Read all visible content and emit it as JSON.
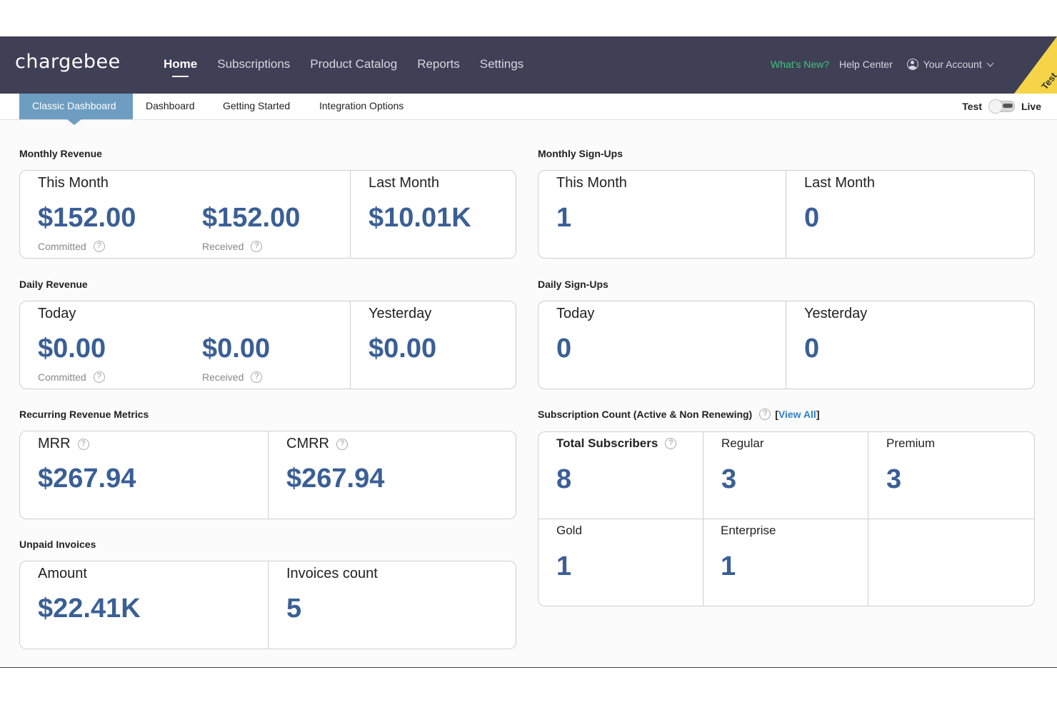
{
  "app": {
    "logo": "chargebee"
  },
  "nav": {
    "items": [
      "Home",
      "Subscriptions",
      "Product Catalog",
      "Reports",
      "Settings"
    ],
    "active": "Home",
    "whats_new": "What's New?",
    "help_center": "Help Center",
    "account": "Your Account",
    "corner_badge": "Test"
  },
  "subnav": {
    "tabs": [
      "Classic Dashboard",
      "Dashboard",
      "Getting Started",
      "Integration Options"
    ],
    "active": "Classic Dashboard",
    "mode_test": "Test",
    "mode_live": "Live"
  },
  "monthly_revenue": {
    "title": "Monthly Revenue",
    "this_month_label": "This Month",
    "committed_value": "$152.00",
    "committed_label": "Committed",
    "received_value": "$152.00",
    "received_label": "Received",
    "last_month_label": "Last Month",
    "last_month_value": "$10.01K"
  },
  "daily_revenue": {
    "title": "Daily Revenue",
    "today_label": "Today",
    "committed_value": "$0.00",
    "committed_label": "Committed",
    "received_value": "$0.00",
    "received_label": "Received",
    "yesterday_label": "Yesterday",
    "yesterday_value": "$0.00"
  },
  "recurring": {
    "title": "Recurring Revenue Metrics",
    "mrr_label": "MRR",
    "mrr_value": "$267.94",
    "cmrr_label": "CMRR",
    "cmrr_value": "$267.94"
  },
  "unpaid": {
    "title": "Unpaid Invoices",
    "amount_label": "Amount",
    "amount_value": "$22.41K",
    "count_label": "Invoices count",
    "count_value": "5"
  },
  "monthly_signups": {
    "title": "Monthly Sign-Ups",
    "this_month_label": "This Month",
    "this_month_value": "1",
    "last_month_label": "Last Month",
    "last_month_value": "0"
  },
  "daily_signups": {
    "title": "Daily Sign-Ups",
    "today_label": "Today",
    "today_value": "0",
    "yesterday_label": "Yesterday",
    "yesterday_value": "0"
  },
  "subscription_count": {
    "title": "Subscription Count (Active & Non Renewing)",
    "view_all_open": "[",
    "view_all": "View All",
    "view_all_close": "]",
    "cells": [
      {
        "label": "Total Subscribers",
        "value": "8"
      },
      {
        "label": "Regular",
        "value": "3"
      },
      {
        "label": "Premium",
        "value": "3"
      },
      {
        "label": "Gold",
        "value": "1"
      },
      {
        "label": "Enterprise",
        "value": "1"
      }
    ]
  },
  "icons": {
    "help": "?"
  }
}
